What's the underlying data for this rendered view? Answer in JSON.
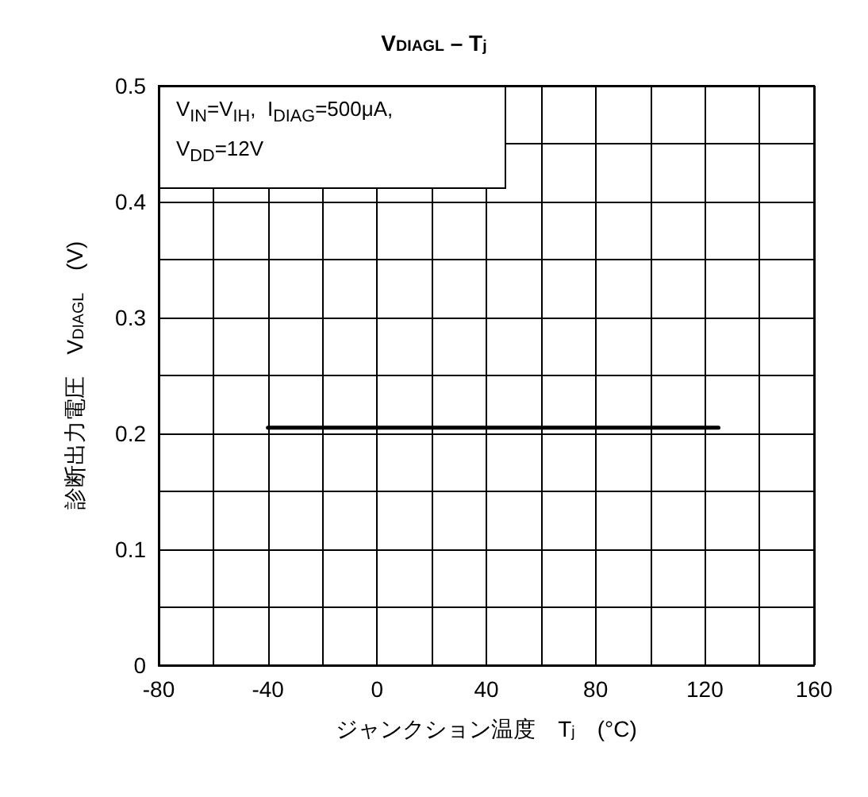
{
  "chart_data": {
    "type": "line",
    "title": "V$_{DIAGL}$ – T$_{j}$",
    "xlabel": "ジャンクション温度　T$_{j}$　(°C)",
    "ylabel": "診断出力電圧　V$_{DIAGL}$　(V)",
    "annotations": [
      "V$_{IN}$=V$_{IH}$,  I$_{DIAG}$=500μA,\nV$_{DD}$=12V"
    ],
    "x": [
      -40,
      125
    ],
    "series": [
      {
        "color": "#000000",
        "values": [
          0.205,
          0.205
        ]
      }
    ],
    "xlim": [
      -80,
      160
    ],
    "xticks": [
      -80,
      {
        "value": -60,
        "label": null
      },
      -40,
      {
        "value": -20,
        "label": null
      },
      0,
      {
        "value": 20,
        "label": null
      },
      40,
      {
        "value": 60,
        "label": null
      },
      80,
      {
        "value": 100,
        "label": null
      },
      120,
      {
        "value": 140,
        "label": null
      },
      160
    ],
    "ylim": [
      0,
      0.5
    ],
    "yticks": [
      {
        "value": 0,
        "label": "0"
      },
      {
        "value": 0.05,
        "label": null
      },
      0.1,
      {
        "value": 0.15,
        "label": null
      },
      0.2,
      {
        "value": 0.25,
        "label": null
      },
      0.3,
      {
        "value": 0.35,
        "label": null
      },
      0.4,
      {
        "value": 0.45,
        "label": null
      },
      0.5
    ],
    "grid": true,
    "marker": "none",
    "line_style": "solid"
  }
}
